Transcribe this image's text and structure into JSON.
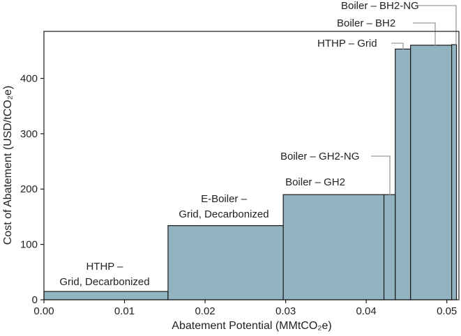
{
  "chart_data": {
    "type": "bar",
    "subtype": "marginal-abatement-cost-curve",
    "xlabel": "Abatement Potential  (MMtCO₂e)",
    "ylabel": "Cost of Abatement  (USD/tCO₂e)",
    "xlim": [
      0,
      0.0515
    ],
    "ylim": [
      0,
      485
    ],
    "xticks": [
      0.0,
      0.01,
      0.02,
      0.03,
      0.04,
      0.05
    ],
    "xtick_labels": [
      "0.00",
      "0.01",
      "0.02",
      "0.03",
      "0.04",
      "0.05"
    ],
    "yticks": [
      0,
      100,
      200,
      300,
      400
    ],
    "ytick_labels": [
      "0",
      "100",
      "200",
      "300",
      "400"
    ],
    "grid": false,
    "colors": {
      "bar_fill": "#93b3c1",
      "bar_edge": "#1a1a1a",
      "leader": "#9a9a9a"
    },
    "bars": [
      {
        "label_lines": [
          "HTHP –",
          "Grid, Decarbonized"
        ],
        "x_start": 0.0,
        "width": 0.0154,
        "value": 15
      },
      {
        "label_lines": [
          "E-Boiler –",
          "Grid, Decarbonized"
        ],
        "x_start": 0.0154,
        "width": 0.0143,
        "value": 134
      },
      {
        "label_lines": [
          "Boiler – GH2"
        ],
        "x_start": 0.0297,
        "width": 0.0125,
        "value": 190
      },
      {
        "label_lines": [
          "Boiler – GH2-NG"
        ],
        "x_start": 0.0422,
        "width": 0.0014,
        "value": 190
      },
      {
        "label_lines": [
          "HTHP – Grid"
        ],
        "x_start": 0.0436,
        "width": 0.0019,
        "value": 453
      },
      {
        "label_lines": [
          "Boiler – BH2"
        ],
        "x_start": 0.0455,
        "width": 0.0051,
        "value": 460
      },
      {
        "label_lines": [
          "Boiler – BH2-NG"
        ],
        "x_start": 0.0506,
        "width": 0.0006,
        "value": 461
      }
    ]
  }
}
